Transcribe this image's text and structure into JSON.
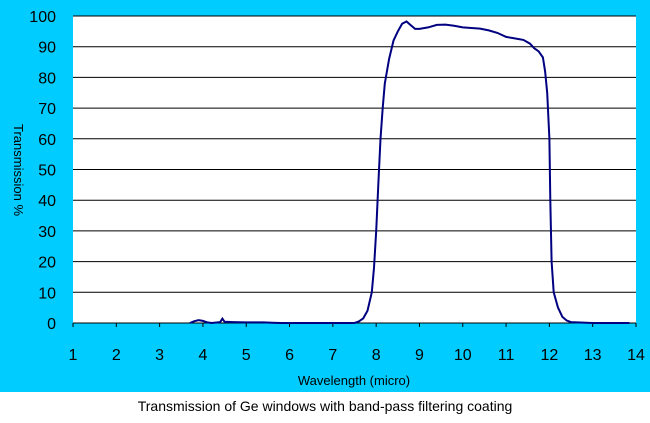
{
  "caption": "Transmission of Ge windows with band-pass filtering coating",
  "colors": {
    "panel_background": "#00ccff",
    "plot_background": "#ffffff",
    "gridline": "#000000",
    "series_line": "#000080"
  },
  "chart_data": {
    "type": "line",
    "title": "",
    "xlabel": "Wavelength (micro)",
    "ylabel": "Transmission %",
    "xlim": [
      1,
      14
    ],
    "ylim": [
      0,
      100
    ],
    "x_ticks": [
      "1",
      "2",
      "3",
      "4",
      "5",
      "6",
      "7",
      "8",
      "9",
      "10",
      "11",
      "12",
      "13",
      "14"
    ],
    "y_ticks": [
      "0",
      "10",
      "20",
      "30",
      "40",
      "50",
      "60",
      "70",
      "80",
      "90",
      "100"
    ],
    "grid": "horizontal",
    "legend": "none",
    "series": [
      {
        "points": [
          [
            3.7,
            0
          ],
          [
            3.8,
            0.6
          ],
          [
            3.9,
            0.9
          ],
          [
            4.0,
            0.7
          ],
          [
            4.1,
            0.2
          ],
          [
            4.2,
            0
          ],
          [
            4.4,
            0.3
          ],
          [
            4.45,
            1.4
          ],
          [
            4.5,
            0.4
          ],
          [
            4.7,
            0.3
          ],
          [
            5.0,
            0.2
          ],
          [
            5.4,
            0.2
          ],
          [
            5.6,
            0.1
          ],
          [
            5.8,
            0
          ],
          [
            6.5,
            0
          ],
          [
            7.0,
            0
          ],
          [
            7.5,
            0
          ],
          [
            7.6,
            0.5
          ],
          [
            7.7,
            1.5
          ],
          [
            7.8,
            4
          ],
          [
            7.9,
            10
          ],
          [
            7.95,
            18
          ],
          [
            8.0,
            30
          ],
          [
            8.05,
            45
          ],
          [
            8.1,
            60
          ],
          [
            8.15,
            70
          ],
          [
            8.2,
            78
          ],
          [
            8.3,
            86
          ],
          [
            8.4,
            92
          ],
          [
            8.5,
            95
          ],
          [
            8.6,
            97.5
          ],
          [
            8.7,
            98.2
          ],
          [
            8.8,
            97
          ],
          [
            8.9,
            95.8
          ],
          [
            9.0,
            95.8
          ],
          [
            9.2,
            96.3
          ],
          [
            9.4,
            97.1
          ],
          [
            9.6,
            97.2
          ],
          [
            9.8,
            96.8
          ],
          [
            10.0,
            96.3
          ],
          [
            10.2,
            96.1
          ],
          [
            10.4,
            95.9
          ],
          [
            10.6,
            95.3
          ],
          [
            10.8,
            94.5
          ],
          [
            11.0,
            93.2
          ],
          [
            11.2,
            92.7
          ],
          [
            11.4,
            92.2
          ],
          [
            11.55,
            91.0
          ],
          [
            11.65,
            89.5
          ],
          [
            11.75,
            88.5
          ],
          [
            11.85,
            86.5
          ],
          [
            11.9,
            82
          ],
          [
            11.95,
            75
          ],
          [
            12.0,
            60
          ],
          [
            12.02,
            40
          ],
          [
            12.05,
            20
          ],
          [
            12.1,
            10
          ],
          [
            12.2,
            5
          ],
          [
            12.3,
            2
          ],
          [
            12.4,
            0.8
          ],
          [
            12.5,
            0.3
          ],
          [
            13.0,
            0
          ],
          [
            13.5,
            0
          ],
          [
            13.85,
            0
          ]
        ]
      }
    ]
  }
}
